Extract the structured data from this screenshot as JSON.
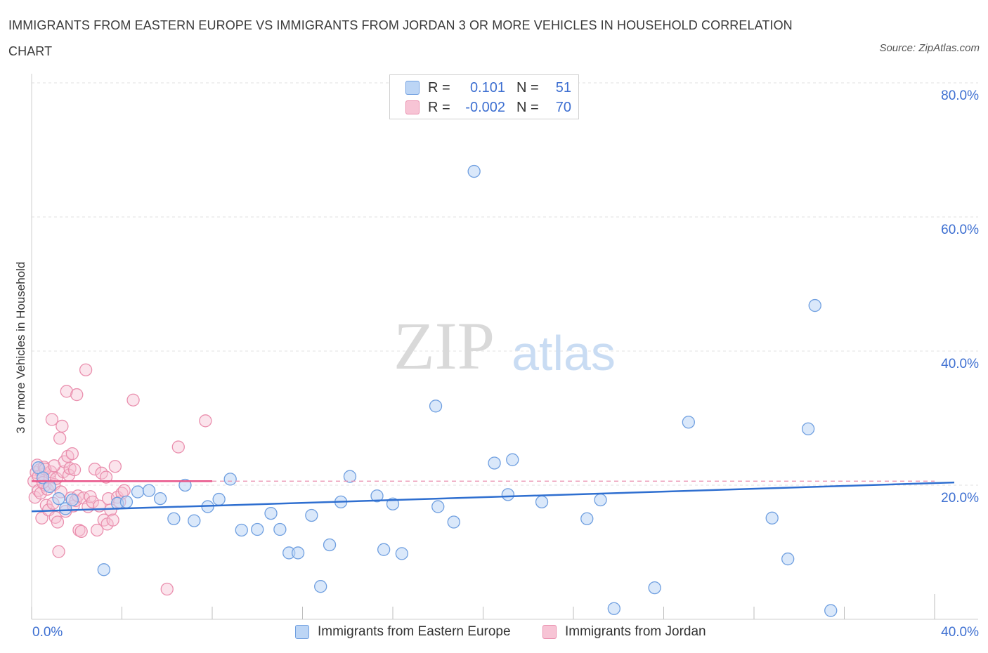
{
  "title": "IMMIGRANTS FROM EASTERN EUROPE VS IMMIGRANTS FROM JORDAN 3 OR MORE VEHICLES IN HOUSEHOLD CORRELATION CHART",
  "source": "Source: ZipAtlas.com",
  "watermark": {
    "zip": "ZIP",
    "atlas": "atlas"
  },
  "legend": {
    "rows": [
      {
        "r_label": "R =",
        "r_value": "0.101",
        "n_label": "N =",
        "n_value": "51"
      },
      {
        "r_label": "R =",
        "r_value": "-0.002",
        "n_label": "N = ",
        "n_value": "70"
      }
    ]
  },
  "colors": {
    "blue": "#6f9fe0",
    "blue_fill": "#bcd5f5",
    "blue_line": "#2f6fd0",
    "pink": "#ea8fae",
    "pink_fill": "#f7c4d5",
    "pink_line": "#e8568a",
    "axis_text": "#3d6fd1"
  },
  "chart_data": {
    "type": "scatter",
    "title": "IMMIGRANTS FROM EASTERN EUROPE VS IMMIGRANTS FROM JORDAN 3 OR MORE VEHICLES IN HOUSEHOLD CORRELATION CHART",
    "xlabel": "",
    "ylabel": "3 or more Vehicles in Household",
    "xlim": [
      0,
      40
    ],
    "ylim": [
      0,
      80
    ],
    "x_tick_labels": [
      "0.0%",
      "40.0%"
    ],
    "y_tick_labels": [
      "20.0%",
      "40.0%",
      "60.0%",
      "80.0%"
    ],
    "y_ticks": [
      20,
      40,
      60,
      80
    ],
    "grid": true,
    "series": [
      {
        "name": "Immigrants from Eastern Europe",
        "color": "#6f9fe0",
        "points": [
          [
            0.3,
            22.6
          ],
          [
            0.5,
            21.1
          ],
          [
            0.8,
            19.8
          ],
          [
            1.2,
            18.0
          ],
          [
            1.5,
            16.5
          ],
          [
            1.8,
            17.8
          ],
          [
            3.2,
            7.4
          ],
          [
            3.8,
            17.3
          ],
          [
            4.2,
            17.5
          ],
          [
            4.7,
            19.0
          ],
          [
            5.2,
            19.2
          ],
          [
            5.7,
            18.0
          ],
          [
            6.3,
            15.0
          ],
          [
            6.8,
            20.0
          ],
          [
            7.2,
            14.7
          ],
          [
            7.8,
            16.8
          ],
          [
            8.3,
            17.9
          ],
          [
            8.8,
            20.9
          ],
          [
            9.3,
            13.3
          ],
          [
            10.0,
            13.4
          ],
          [
            10.6,
            15.8
          ],
          [
            11.0,
            13.4
          ],
          [
            11.4,
            9.9
          ],
          [
            11.8,
            9.9
          ],
          [
            12.4,
            15.5
          ],
          [
            12.8,
            4.9
          ],
          [
            13.2,
            11.1
          ],
          [
            13.7,
            17.5
          ],
          [
            14.1,
            21.3
          ],
          [
            15.3,
            18.4
          ],
          [
            15.6,
            10.4
          ],
          [
            16.0,
            17.2
          ],
          [
            16.4,
            9.8
          ],
          [
            17.9,
            31.8
          ],
          [
            18.0,
            16.8
          ],
          [
            18.7,
            14.5
          ],
          [
            19.6,
            66.8
          ],
          [
            20.5,
            23.3
          ],
          [
            21.1,
            18.6
          ],
          [
            21.3,
            23.8
          ],
          [
            22.6,
            17.5
          ],
          [
            24.6,
            15.0
          ],
          [
            25.2,
            17.8
          ],
          [
            25.8,
            1.6
          ],
          [
            27.6,
            4.7
          ],
          [
            29.1,
            29.4
          ],
          [
            32.8,
            15.1
          ],
          [
            33.5,
            9.0
          ],
          [
            34.4,
            28.4
          ],
          [
            34.7,
            46.8
          ],
          [
            35.4,
            1.3
          ]
        ],
        "trend": {
          "x": [
            0,
            40
          ],
          "y": [
            16.1,
            20.4
          ]
        }
      },
      {
        "name": "Immigrants from Jordan",
        "color": "#ea8fae",
        "points": [
          [
            0.1,
            20.6
          ],
          [
            0.15,
            18.2
          ],
          [
            0.2,
            21.9
          ],
          [
            0.25,
            23.0
          ],
          [
            0.3,
            19.2
          ],
          [
            0.35,
            22.3
          ],
          [
            0.4,
            18.8
          ],
          [
            0.45,
            15.1
          ],
          [
            0.5,
            21.6
          ],
          [
            0.55,
            22.7
          ],
          [
            0.6,
            20.0
          ],
          [
            0.65,
            17.0
          ],
          [
            0.7,
            19.4
          ],
          [
            0.75,
            16.3
          ],
          [
            0.8,
            21.2
          ],
          [
            0.85,
            22.0
          ],
          [
            0.9,
            29.8
          ],
          [
            0.95,
            17.3
          ],
          [
            1.0,
            20.1
          ],
          [
            1.05,
            15.2
          ],
          [
            1.1,
            21.0
          ],
          [
            1.15,
            14.5
          ],
          [
            1.2,
            10.1
          ],
          [
            1.25,
            27.0
          ],
          [
            1.3,
            19.0
          ],
          [
            1.35,
            28.8
          ],
          [
            1.4,
            22.0
          ],
          [
            1.45,
            23.5
          ],
          [
            1.5,
            16.1
          ],
          [
            1.55,
            34.0
          ],
          [
            1.6,
            24.3
          ],
          [
            1.65,
            21.5
          ],
          [
            1.7,
            22.5
          ],
          [
            1.75,
            18.1
          ],
          [
            1.8,
            24.7
          ],
          [
            1.85,
            16.9
          ],
          [
            1.9,
            22.3
          ],
          [
            1.95,
            17.7
          ],
          [
            2.0,
            33.5
          ],
          [
            2.05,
            18.4
          ],
          [
            2.1,
            13.3
          ],
          [
            2.2,
            13.1
          ],
          [
            2.3,
            18.1
          ],
          [
            2.4,
            37.2
          ],
          [
            2.5,
            16.8
          ],
          [
            2.6,
            18.3
          ],
          [
            2.7,
            17.5
          ],
          [
            2.8,
            22.4
          ],
          [
            2.9,
            13.3
          ],
          [
            3.0,
            16.9
          ],
          [
            3.1,
            21.8
          ],
          [
            3.2,
            14.8
          ],
          [
            3.3,
            21.2
          ],
          [
            3.35,
            14.2
          ],
          [
            3.4,
            18.0
          ],
          [
            3.5,
            16.3
          ],
          [
            3.6,
            14.8
          ],
          [
            3.7,
            22.8
          ],
          [
            3.8,
            18.2
          ],
          [
            3.9,
            17.5
          ],
          [
            4.0,
            18.8
          ],
          [
            4.1,
            19.2
          ],
          [
            4.5,
            32.7
          ],
          [
            6.0,
            4.5
          ],
          [
            6.5,
            25.7
          ],
          [
            7.7,
            29.6
          ],
          [
            0.3,
            21.3
          ],
          [
            0.6,
            22.4
          ],
          [
            1.0,
            22.9
          ],
          [
            0.5,
            20.4
          ]
        ],
        "trend": {
          "x": [
            0,
            8
          ],
          "y": [
            20.6,
            20.6
          ]
        },
        "trend_dashed": {
          "x": [
            8,
            40
          ],
          "y": [
            20.6,
            20.6
          ]
        }
      }
    ]
  },
  "bottom_legend": [
    "Immigrants from Eastern Europe",
    "Immigrants from Jordan"
  ]
}
